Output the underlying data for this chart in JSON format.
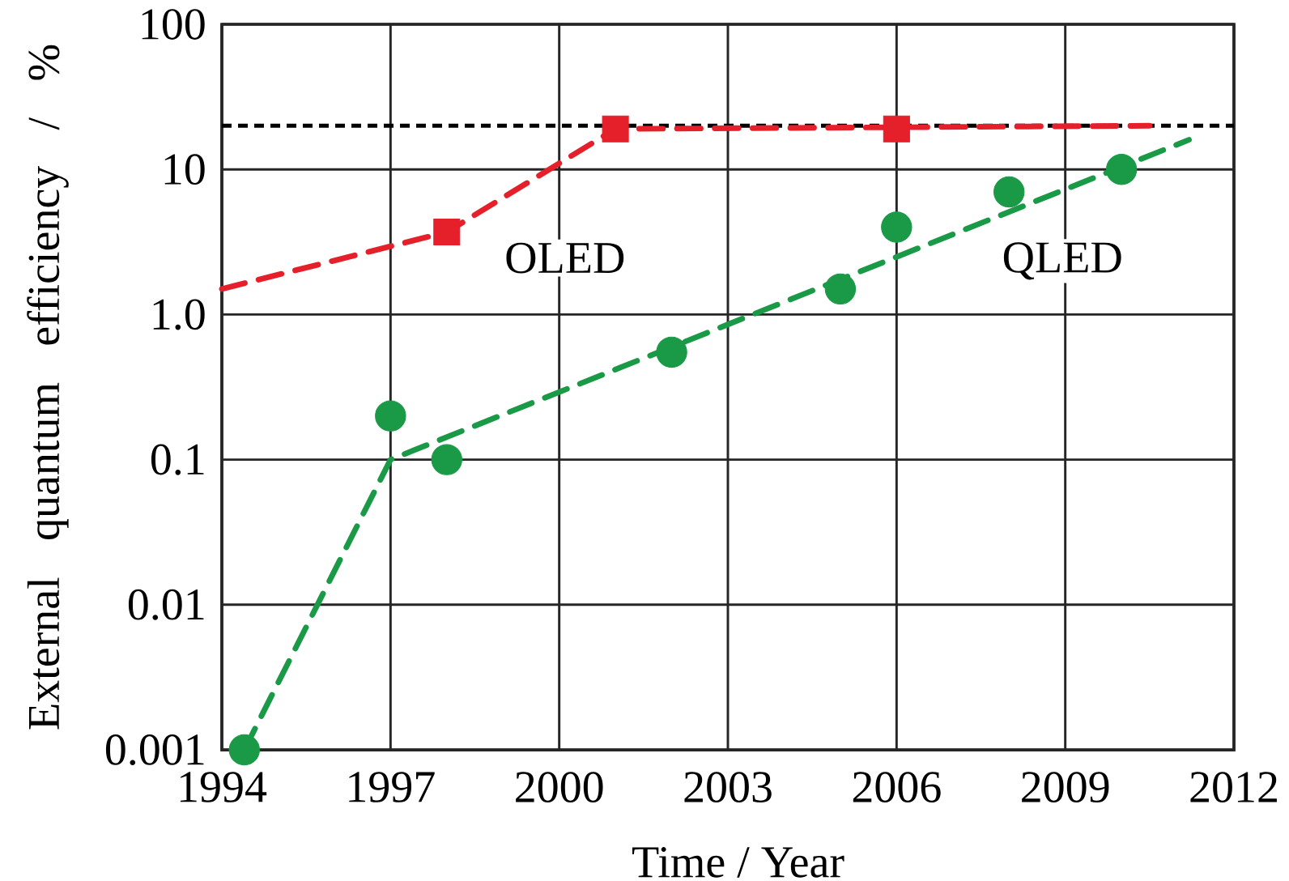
{
  "chart_data": {
    "type": "scatter",
    "xlabel": "Time / Year",
    "ylabel": "External quantum efficiency / %",
    "log": "y",
    "grid": true,
    "xlim": [
      1994,
      2012
    ],
    "xticks": [
      1994,
      1997,
      2000,
      2003,
      2006,
      2009,
      2012
    ],
    "ylim": [
      0.001,
      100
    ],
    "yticks": [
      0.001,
      0.01,
      0.1,
      {
        "value": 1,
        "label": "1.0"
      },
      10,
      100
    ],
    "ref_lines": [
      {
        "axis": "y",
        "value": 20,
        "color": "#000000",
        "line_style": "dashed"
      }
    ],
    "series": [
      {
        "name": "OLED",
        "marker": "square",
        "color": "#e5202b",
        "x": [
          1998,
          2001,
          2006
        ],
        "values": [
          3.7,
          19,
          19
        ]
      },
      {
        "type": "line",
        "marker": "none",
        "line_style": "dashed",
        "color": "#e5202b",
        "x": [
          1994,
          1998,
          2001,
          2010.5
        ],
        "values": [
          1.5,
          3.7,
          19,
          20
        ]
      },
      {
        "name": "QLED",
        "marker": "circle",
        "color": "#1a9a47",
        "x": [
          1994.4,
          1997,
          1998,
          2002,
          2005,
          2006,
          2008,
          2010
        ],
        "values": [
          0.001,
          0.2,
          0.1,
          0.55,
          1.5,
          4,
          7,
          10
        ]
      },
      {
        "type": "line",
        "marker": "none",
        "line_style": "dashed",
        "color": "#1a9a47",
        "x": [
          1994.4,
          1997,
          2011.2
        ],
        "values": [
          0.001,
          0.1,
          16
        ]
      }
    ]
  }
}
